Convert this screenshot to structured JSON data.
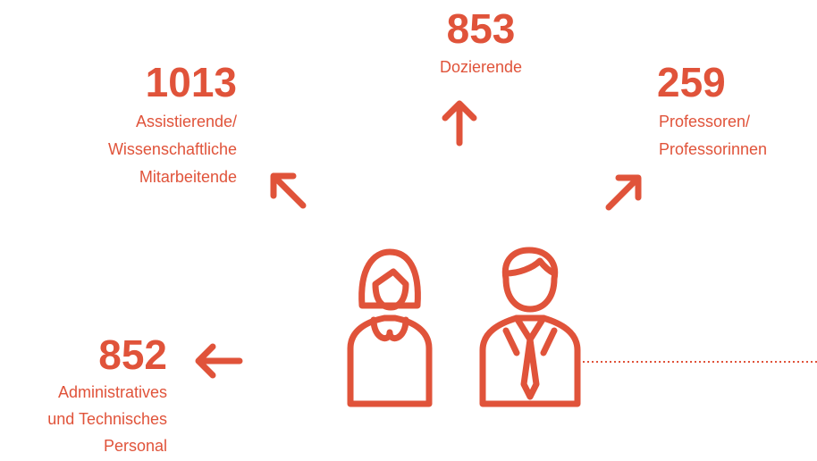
{
  "items": [
    {
      "number": "853",
      "label": [
        "Dozierende"
      ]
    },
    {
      "number": "1013",
      "label": [
        "Assistierende/",
        "Wissenschaftliche",
        "Mitarbeitende"
      ]
    },
    {
      "number": "259",
      "label": [
        "Professoren/",
        "Professorinnen"
      ]
    },
    {
      "number": "852",
      "label": [
        "Administratives",
        "und Technisches",
        "Personal"
      ]
    }
  ]
}
